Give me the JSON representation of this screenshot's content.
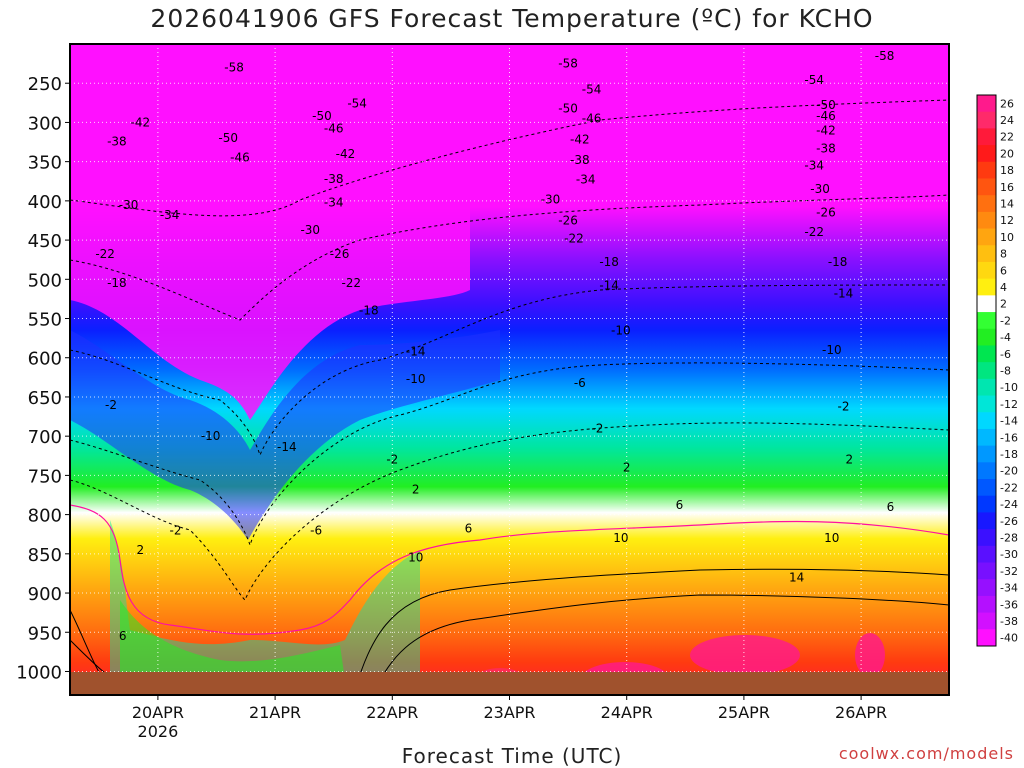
{
  "title": "2026041906 GFS Forecast Temperature (ºC) for KCHO",
  "x_axis_label": "Forecast Time (UTC)",
  "credit": "coolwx.com/models",
  "chart_data": {
    "type": "heatmap",
    "title": "2026041906 GFS Forecast Temperature (ºC) for KCHO",
    "xlabel": "Forecast Time (UTC)",
    "ylabel": "",
    "x_ticks": [
      {
        "label": "20APR",
        "sub": "2026",
        "day": 20
      },
      {
        "label": "21APR",
        "sub": "",
        "day": 21
      },
      {
        "label": "22APR",
        "sub": "",
        "day": 22
      },
      {
        "label": "23APR",
        "sub": "",
        "day": 23
      },
      {
        "label": "24APR",
        "sub": "",
        "day": 24
      },
      {
        "label": "25APR",
        "sub": "",
        "day": 25
      },
      {
        "label": "26APR",
        "sub": "",
        "day": 26
      }
    ],
    "xlim_days": [
      19.25,
      26.75
    ],
    "y_ticks": [
      250,
      300,
      350,
      400,
      450,
      500,
      550,
      600,
      650,
      700,
      750,
      800,
      850,
      900,
      950,
      1000
    ],
    "ylim_hpa": [
      1030,
      200
    ],
    "colorbar": {
      "labels": [
        26,
        24,
        22,
        20,
        18,
        16,
        14,
        12,
        10,
        8,
        6,
        4,
        2,
        -2,
        -4,
        -6,
        -8,
        -10,
        -12,
        -14,
        -16,
        -18,
        -20,
        -22,
        -24,
        -26,
        -28,
        -30,
        -32,
        -34,
        -36,
        -38,
        -40
      ],
      "colors": [
        "#ff1a8c",
        "#ff2a6a",
        "#ff1a3a",
        "#ff1a1a",
        "#ff3a10",
        "#ff5510",
        "#ff7010",
        "#ff8a10",
        "#ffa510",
        "#ffbf10",
        "#ffd810",
        "#ffef10",
        "#ffffff",
        "#33ff33",
        "#22ee22",
        "#00e650",
        "#00e680",
        "#00e6b0",
        "#00e6d8",
        "#00d8ff",
        "#00b8ff",
        "#0098ff",
        "#0078ff",
        "#0058ff",
        "#0038ff",
        "#1818ff",
        "#3b10ff",
        "#5a10ff",
        "#7810ff",
        "#9610ff",
        "#b410ff",
        "#d210ff",
        "#ff10ff"
      ]
    },
    "isotherm_labels": [
      {
        "day": 20.65,
        "hpa": 230,
        "t": -58
      },
      {
        "day": 23.5,
        "hpa": 225,
        "t": -58
      },
      {
        "day": 26.2,
        "hpa": 215,
        "t": -58
      },
      {
        "day": 21.7,
        "hpa": 276,
        "t": -54
      },
      {
        "day": 23.7,
        "hpa": 258,
        "t": -54
      },
      {
        "day": 25.6,
        "hpa": 246,
        "t": -54
      },
      {
        "day": 21.4,
        "hpa": 292,
        "t": -50
      },
      {
        "day": 23.5,
        "hpa": 282,
        "t": -50
      },
      {
        "day": 25.7,
        "hpa": 278,
        "t": -50
      },
      {
        "day": 20.6,
        "hpa": 320,
        "t": -50
      },
      {
        "day": 21.5,
        "hpa": 308,
        "t": -46
      },
      {
        "day": 23.7,
        "hpa": 295,
        "t": -46
      },
      {
        "day": 25.7,
        "hpa": 292,
        "t": -46
      },
      {
        "day": 20.7,
        "hpa": 345,
        "t": -46
      },
      {
        "day": 19.85,
        "hpa": 300,
        "t": -42
      },
      {
        "day": 21.6,
        "hpa": 340,
        "t": -42
      },
      {
        "day": 23.6,
        "hpa": 322,
        "t": -42
      },
      {
        "day": 25.7,
        "hpa": 310,
        "t": -42
      },
      {
        "day": 19.65,
        "hpa": 324,
        "t": -38
      },
      {
        "day": 21.5,
        "hpa": 372,
        "t": -38
      },
      {
        "day": 23.6,
        "hpa": 348,
        "t": -38
      },
      {
        "day": 25.7,
        "hpa": 333,
        "t": -38
      },
      {
        "day": 21.5,
        "hpa": 402,
        "t": -34
      },
      {
        "day": 23.65,
        "hpa": 373,
        "t": -34
      },
      {
        "day": 25.6,
        "hpa": 355,
        "t": -34
      },
      {
        "day": 20.1,
        "hpa": 418,
        "t": -34
      },
      {
        "day": 19.75,
        "hpa": 405,
        "t": -30
      },
      {
        "day": 21.3,
        "hpa": 437,
        "t": -30
      },
      {
        "day": 23.35,
        "hpa": 398,
        "t": -30
      },
      {
        "day": 25.65,
        "hpa": 385,
        "t": -30
      },
      {
        "day": 21.55,
        "hpa": 468,
        "t": -26
      },
      {
        "day": 23.5,
        "hpa": 425,
        "t": -26
      },
      {
        "day": 25.7,
        "hpa": 415,
        "t": -26
      },
      {
        "day": 19.55,
        "hpa": 468,
        "t": -22
      },
      {
        "day": 21.65,
        "hpa": 505,
        "t": -22
      },
      {
        "day": 23.55,
        "hpa": 448,
        "t": -22
      },
      {
        "day": 25.6,
        "hpa": 440,
        "t": -22
      },
      {
        "day": 19.65,
        "hpa": 505,
        "t": -18
      },
      {
        "day": 21.8,
        "hpa": 540,
        "t": -18
      },
      {
        "day": 23.85,
        "hpa": 478,
        "t": -18
      },
      {
        "day": 25.8,
        "hpa": 478,
        "t": -18
      },
      {
        "day": 22.2,
        "hpa": 592,
        "t": -14
      },
      {
        "day": 23.85,
        "hpa": 508,
        "t": -14
      },
      {
        "day": 25.85,
        "hpa": 518,
        "t": -14
      },
      {
        "day": 20.45,
        "hpa": 700,
        "t": -10
      },
      {
        "day": 22.2,
        "hpa": 627,
        "t": -10
      },
      {
        "day": 23.95,
        "hpa": 565,
        "t": -10
      },
      {
        "day": 25.75,
        "hpa": 590,
        "t": -10
      },
      {
        "day": 21.1,
        "hpa": 714,
        "t": -14
      },
      {
        "day": 21.35,
        "hpa": 820,
        "t": -6
      },
      {
        "day": 23.6,
        "hpa": 632,
        "t": -6
      },
      {
        "day": 20.15,
        "hpa": 820,
        "t": -2
      },
      {
        "day": 19.6,
        "hpa": 660,
        "t": -2
      },
      {
        "day": 22.0,
        "hpa": 730,
        "t": -2
      },
      {
        "day": 23.75,
        "hpa": 690,
        "t": -2
      },
      {
        "day": 25.85,
        "hpa": 662,
        "t": -2
      },
      {
        "day": 22.2,
        "hpa": 768,
        "t": 2
      },
      {
        "day": 24.0,
        "hpa": 740,
        "t": 2
      },
      {
        "day": 25.9,
        "hpa": 730,
        "t": 2
      },
      {
        "day": 19.85,
        "hpa": 845,
        "t": 2
      },
      {
        "day": 22.65,
        "hpa": 818,
        "t": 6
      },
      {
        "day": 24.45,
        "hpa": 788,
        "t": 6
      },
      {
        "day": 26.25,
        "hpa": 790,
        "t": 6
      },
      {
        "day": 19.7,
        "hpa": 955,
        "t": 6
      },
      {
        "day": 22.2,
        "hpa": 855,
        "t": 10
      },
      {
        "day": 23.95,
        "hpa": 830,
        "t": 10
      },
      {
        "day": 25.75,
        "hpa": 830,
        "t": 10
      },
      {
        "day": 25.45,
        "hpa": 880,
        "t": 14
      }
    ]
  }
}
